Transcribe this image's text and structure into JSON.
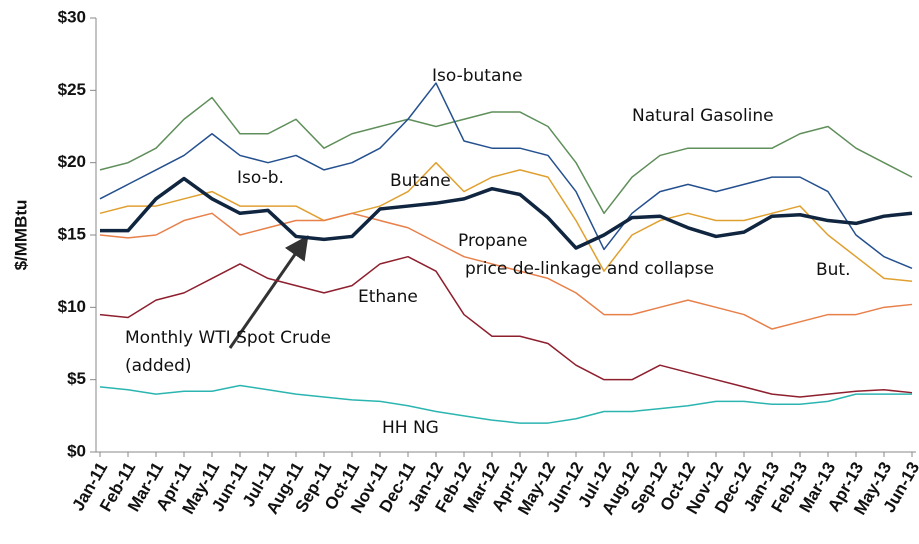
{
  "chart_data": {
    "type": "line",
    "y_label": "$/MMBtu",
    "categories": [
      "Jan-11",
      "Feb-11",
      "Mar-11",
      "Apr-11",
      "May-11",
      "Jun-11",
      "Jul-11",
      "Aug-11",
      "Sep-11",
      "Oct-11",
      "Nov-11",
      "Dec-11",
      "Jan-12",
      "Feb-12",
      "Mar-12",
      "Apr-12",
      "May-12",
      "Jun-12",
      "Jul-12",
      "Aug-12",
      "Sep-12",
      "Oct-12",
      "Nov-12",
      "Dec-12",
      "Jan-13",
      "Feb-13",
      "Mar-13",
      "Apr-13",
      "May-13",
      "Jun-13"
    ],
    "ylim": [
      0,
      30
    ],
    "yticks": [
      {
        "value": 0,
        "label": "$0"
      },
      {
        "value": 5,
        "label": "$5"
      },
      {
        "value": 10,
        "label": "$10"
      },
      {
        "value": 15,
        "label": "$15"
      },
      {
        "value": 20,
        "label": "$20"
      },
      {
        "value": 25,
        "label": "$25"
      },
      {
        "value": 30,
        "label": "$30"
      }
    ],
    "series": [
      {
        "name": "Natural Gasoline",
        "color": "#5f8f5a",
        "width": 1.5,
        "values": [
          19.5,
          20,
          21,
          23,
          24.5,
          22,
          22,
          23,
          21,
          22,
          22.5,
          23,
          22.5,
          23,
          23.5,
          23.5,
          22.5,
          20,
          16.5,
          19,
          20.5,
          21,
          21,
          21,
          21,
          22,
          22.5,
          21,
          20,
          19
        ]
      },
      {
        "name": "Iso-butane",
        "color": "#24508f",
        "width": 1.5,
        "values": [
          17.5,
          18.5,
          19.5,
          20.5,
          22,
          20.5,
          20,
          20.5,
          19.5,
          20,
          21,
          23,
          25.5,
          21.5,
          21,
          21,
          20.5,
          18,
          14,
          16.5,
          18,
          18.5,
          18,
          18.5,
          19,
          19,
          18,
          15,
          13.5,
          12.7
        ]
      },
      {
        "name": "Butane",
        "color": "#e0a030",
        "width": 1.5,
        "values": [
          16.5,
          17,
          17,
          17.5,
          18,
          17,
          17,
          17,
          16,
          16.5,
          17,
          18,
          20,
          18,
          19,
          19.5,
          19,
          16,
          12.5,
          15,
          16,
          16.5,
          16,
          16,
          16.5,
          17,
          15,
          13.5,
          12,
          11.8
        ]
      },
      {
        "name": "Propane",
        "color": "#e8804a",
        "width": 1.5,
        "values": [
          15,
          14.8,
          15,
          16,
          16.5,
          15,
          15.5,
          16,
          16,
          16.5,
          16,
          15.5,
          14.5,
          13.5,
          13,
          12.5,
          12,
          11,
          9.5,
          9.5,
          10,
          10.5,
          10,
          9.5,
          8.5,
          9,
          9.5,
          9.5,
          10,
          10.2
        ]
      },
      {
        "name": "Ethane",
        "color": "#8e1f2e",
        "width": 1.5,
        "values": [
          9.5,
          9.3,
          10.5,
          11,
          12,
          13,
          12,
          11.5,
          11,
          11.5,
          13,
          13.5,
          12.5,
          9.5,
          8,
          8,
          7.5,
          6,
          5,
          5,
          6,
          5.5,
          5,
          4.5,
          4,
          3.8,
          4,
          4.2,
          4.3,
          4.1
        ]
      },
      {
        "name": "HH NG",
        "color": "#2bb5b0",
        "width": 1.5,
        "values": [
          4.5,
          4.3,
          4,
          4.2,
          4.2,
          4.6,
          4.3,
          4,
          3.8,
          3.6,
          3.5,
          3.2,
          2.8,
          2.5,
          2.2,
          2,
          2,
          2.3,
          2.8,
          2.8,
          3,
          3.2,
          3.5,
          3.5,
          3.3,
          3.3,
          3.5,
          4,
          4,
          4
        ]
      },
      {
        "name": "Monthly WTI Spot Crude",
        "color": "#10253f",
        "width": 3.5,
        "values": [
          15.3,
          15.3,
          17.5,
          18.9,
          17.5,
          16.5,
          16.7,
          14.9,
          14.7,
          14.9,
          16.8,
          17,
          17.2,
          17.5,
          18.2,
          17.8,
          16.2,
          14.1,
          15,
          16.2,
          16.3,
          15.5,
          14.9,
          15.2,
          16.3,
          16.4,
          16,
          15.8,
          16.3,
          16.5
        ]
      }
    ],
    "annotations": [
      "Iso-b.",
      "But.",
      "price de-linkage and collapse",
      "(added)"
    ]
  }
}
